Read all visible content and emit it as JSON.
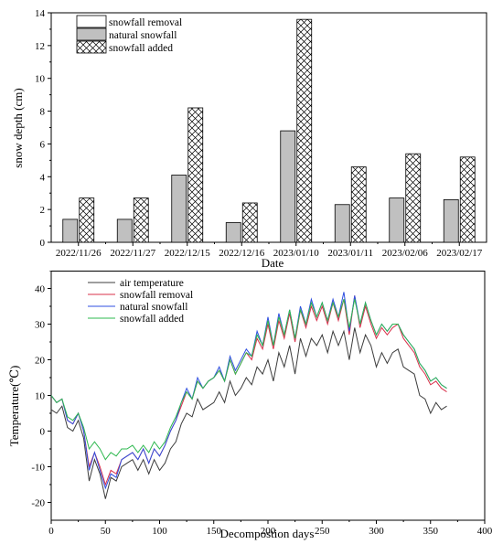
{
  "chart_data": [
    {
      "type": "bar",
      "xlabel": "Date",
      "ylabel": "snow depth (cm)",
      "ylim": [
        0,
        14
      ],
      "yticks": [
        0,
        2,
        4,
        6,
        8,
        10,
        12,
        14
      ],
      "categories": [
        "2022/11/26",
        "2022/11/27",
        "2022/12/15",
        "2022/12/16",
        "2023/01/10",
        "2023/01/11",
        "2023/02/06",
        "2023/02/17"
      ],
      "series": [
        {
          "name": "snowfall removal",
          "fill": "white",
          "values": [
            0,
            0,
            0,
            0,
            0,
            0,
            0,
            0
          ]
        },
        {
          "name": "natural snowfall",
          "fill": "gray",
          "values": [
            1.4,
            1.4,
            4.1,
            1.2,
            6.8,
            2.3,
            2.7,
            2.6
          ]
        },
        {
          "name": "snowfall added",
          "fill": "crosshatch",
          "values": [
            2.7,
            2.7,
            8.2,
            2.4,
            13.6,
            4.6,
            5.4,
            5.2
          ]
        }
      ],
      "legend_position": "top-left",
      "colors": {
        "natural": "#c0c0c0",
        "bar_stroke": "#000000"
      }
    },
    {
      "type": "line",
      "xlabel": "Decompostion days",
      "ylabel": "Temperature(℃)",
      "xlim": [
        0,
        400
      ],
      "ylim": [
        -25,
        45
      ],
      "xticks": [
        0,
        50,
        100,
        150,
        200,
        250,
        300,
        350,
        400
      ],
      "yticks": [
        -20,
        -10,
        0,
        10,
        20,
        30,
        40
      ],
      "legend_position": "top-left",
      "series": [
        {
          "name": "air temperature",
          "color": "#3c3c3c",
          "x": [
            0,
            5,
            10,
            15,
            20,
            25,
            30,
            35,
            40,
            45,
            50,
            55,
            60,
            65,
            70,
            75,
            80,
            85,
            90,
            95,
            100,
            105,
            110,
            115,
            120,
            125,
            130,
            135,
            140,
            145,
            150,
            155,
            160,
            165,
            170,
            175,
            180,
            185,
            190,
            195,
            200,
            205,
            210,
            215,
            220,
            225,
            230,
            235,
            240,
            245,
            250,
            255,
            260,
            265,
            270,
            275,
            280,
            285,
            290,
            295,
            300,
            305,
            310,
            315,
            320,
            325,
            330,
            335,
            340,
            345,
            350,
            355,
            360,
            365
          ],
          "y": [
            6,
            5,
            7,
            1,
            0,
            3,
            -2,
            -14,
            -8,
            -12,
            -19,
            -13,
            -14,
            -10,
            -9,
            -8,
            -11,
            -8,
            -12,
            -8,
            -11,
            -9,
            -5,
            -3,
            2,
            5,
            4,
            9,
            6,
            7,
            8,
            11,
            8,
            14,
            10,
            12,
            15,
            13,
            18,
            16,
            20,
            14,
            22,
            18,
            24,
            16,
            26,
            21,
            26,
            24,
            27,
            22,
            28,
            24,
            28,
            20,
            29,
            22,
            27,
            24,
            18,
            22,
            19,
            22,
            23,
            18,
            17,
            16,
            10,
            9,
            5,
            8,
            6,
            7
          ]
        },
        {
          "name": "snowfall removal",
          "color": "#d9304a",
          "x": [
            0,
            5,
            10,
            15,
            20,
            25,
            30,
            35,
            40,
            45,
            50,
            55,
            60,
            65,
            70,
            75,
            80,
            85,
            90,
            95,
            100,
            105,
            110,
            115,
            120,
            125,
            130,
            135,
            140,
            145,
            150,
            155,
            160,
            165,
            170,
            175,
            180,
            185,
            190,
            195,
            200,
            205,
            210,
            215,
            220,
            225,
            230,
            235,
            240,
            245,
            250,
            255,
            260,
            265,
            270,
            275,
            280,
            285,
            290,
            295,
            300,
            305,
            310,
            315,
            320,
            325,
            330,
            335,
            340,
            345,
            350,
            355,
            360,
            365
          ],
          "y": [
            10,
            8,
            9,
            3,
            2,
            5,
            0,
            -10,
            -6,
            -10,
            -15,
            -11,
            -12,
            -8,
            -7,
            -6,
            -8,
            -5,
            -9,
            -5,
            -7,
            -4,
            0,
            3,
            7,
            11,
            9,
            14,
            12,
            14,
            15,
            17,
            14,
            20,
            16,
            19,
            22,
            20,
            26,
            23,
            30,
            23,
            31,
            26,
            33,
            25,
            34,
            29,
            35,
            31,
            35,
            30,
            36,
            31,
            37,
            27,
            38,
            29,
            35,
            30,
            26,
            29,
            27,
            29,
            30,
            26,
            24,
            22,
            18,
            16,
            13,
            14,
            12,
            11
          ]
        },
        {
          "name": "natural snowfall",
          "color": "#2f4fe0",
          "x": [
            0,
            5,
            10,
            15,
            20,
            25,
            30,
            35,
            40,
            45,
            50,
            55,
            60,
            65,
            70,
            75,
            80,
            85,
            90,
            95,
            100,
            105,
            110,
            115,
            120,
            125,
            130,
            135,
            140,
            145,
            150,
            155,
            160,
            165,
            170,
            175,
            180,
            185,
            190,
            195,
            200,
            205,
            210,
            215,
            220,
            225,
            230,
            235,
            240,
            245,
            250,
            255,
            260,
            265,
            270,
            275,
            280,
            285,
            290,
            295,
            300,
            305,
            310,
            315,
            320,
            325,
            330,
            335,
            340,
            345,
            350,
            355,
            360,
            365
          ],
          "y": [
            10,
            8,
            9,
            3,
            2,
            5,
            0,
            -11,
            -6,
            -11,
            -16,
            -12,
            -13,
            -8,
            -7,
            -6,
            -8,
            -5,
            -9,
            -5,
            -7,
            -4,
            0,
            3,
            8,
            12,
            9,
            15,
            12,
            14,
            15,
            18,
            14,
            21,
            17,
            20,
            23,
            21,
            28,
            24,
            32,
            24,
            33,
            27,
            34,
            26,
            35,
            30,
            37,
            32,
            36,
            31,
            37,
            32,
            39,
            28,
            38,
            30,
            36,
            31,
            27,
            30,
            28,
            30,
            30,
            27,
            25,
            23,
            19,
            17,
            14,
            15,
            13,
            12
          ]
        },
        {
          "name": "snowfall added",
          "color": "#2eb84f",
          "x": [
            0,
            5,
            10,
            15,
            20,
            25,
            30,
            35,
            40,
            45,
            50,
            55,
            60,
            65,
            70,
            75,
            80,
            85,
            90,
            95,
            100,
            105,
            110,
            115,
            120,
            125,
            130,
            135,
            140,
            145,
            150,
            155,
            160,
            165,
            170,
            175,
            180,
            185,
            190,
            195,
            200,
            205,
            210,
            215,
            220,
            225,
            230,
            235,
            240,
            245,
            250,
            255,
            260,
            265,
            270,
            275,
            280,
            285,
            290,
            295,
            300,
            305,
            310,
            315,
            320,
            325,
            330,
            335,
            340,
            345,
            350,
            355,
            360,
            365
          ],
          "y": [
            10,
            8,
            9,
            4,
            3,
            5,
            1,
            -5,
            -3,
            -5,
            -8,
            -6,
            -7,
            -5,
            -5,
            -4,
            -6,
            -4,
            -6,
            -3,
            -5,
            -3,
            1,
            4,
            8,
            11,
            9,
            14,
            12,
            14,
            15,
            17,
            14,
            20,
            16,
            19,
            22,
            21,
            27,
            24,
            31,
            24,
            32,
            27,
            34,
            26,
            34,
            30,
            36,
            32,
            36,
            31,
            36,
            32,
            37,
            29,
            37,
            30,
            36,
            31,
            27,
            30,
            28,
            30,
            30,
            27,
            25,
            23,
            19,
            17,
            14,
            15,
            13,
            12
          ]
        }
      ]
    }
  ]
}
